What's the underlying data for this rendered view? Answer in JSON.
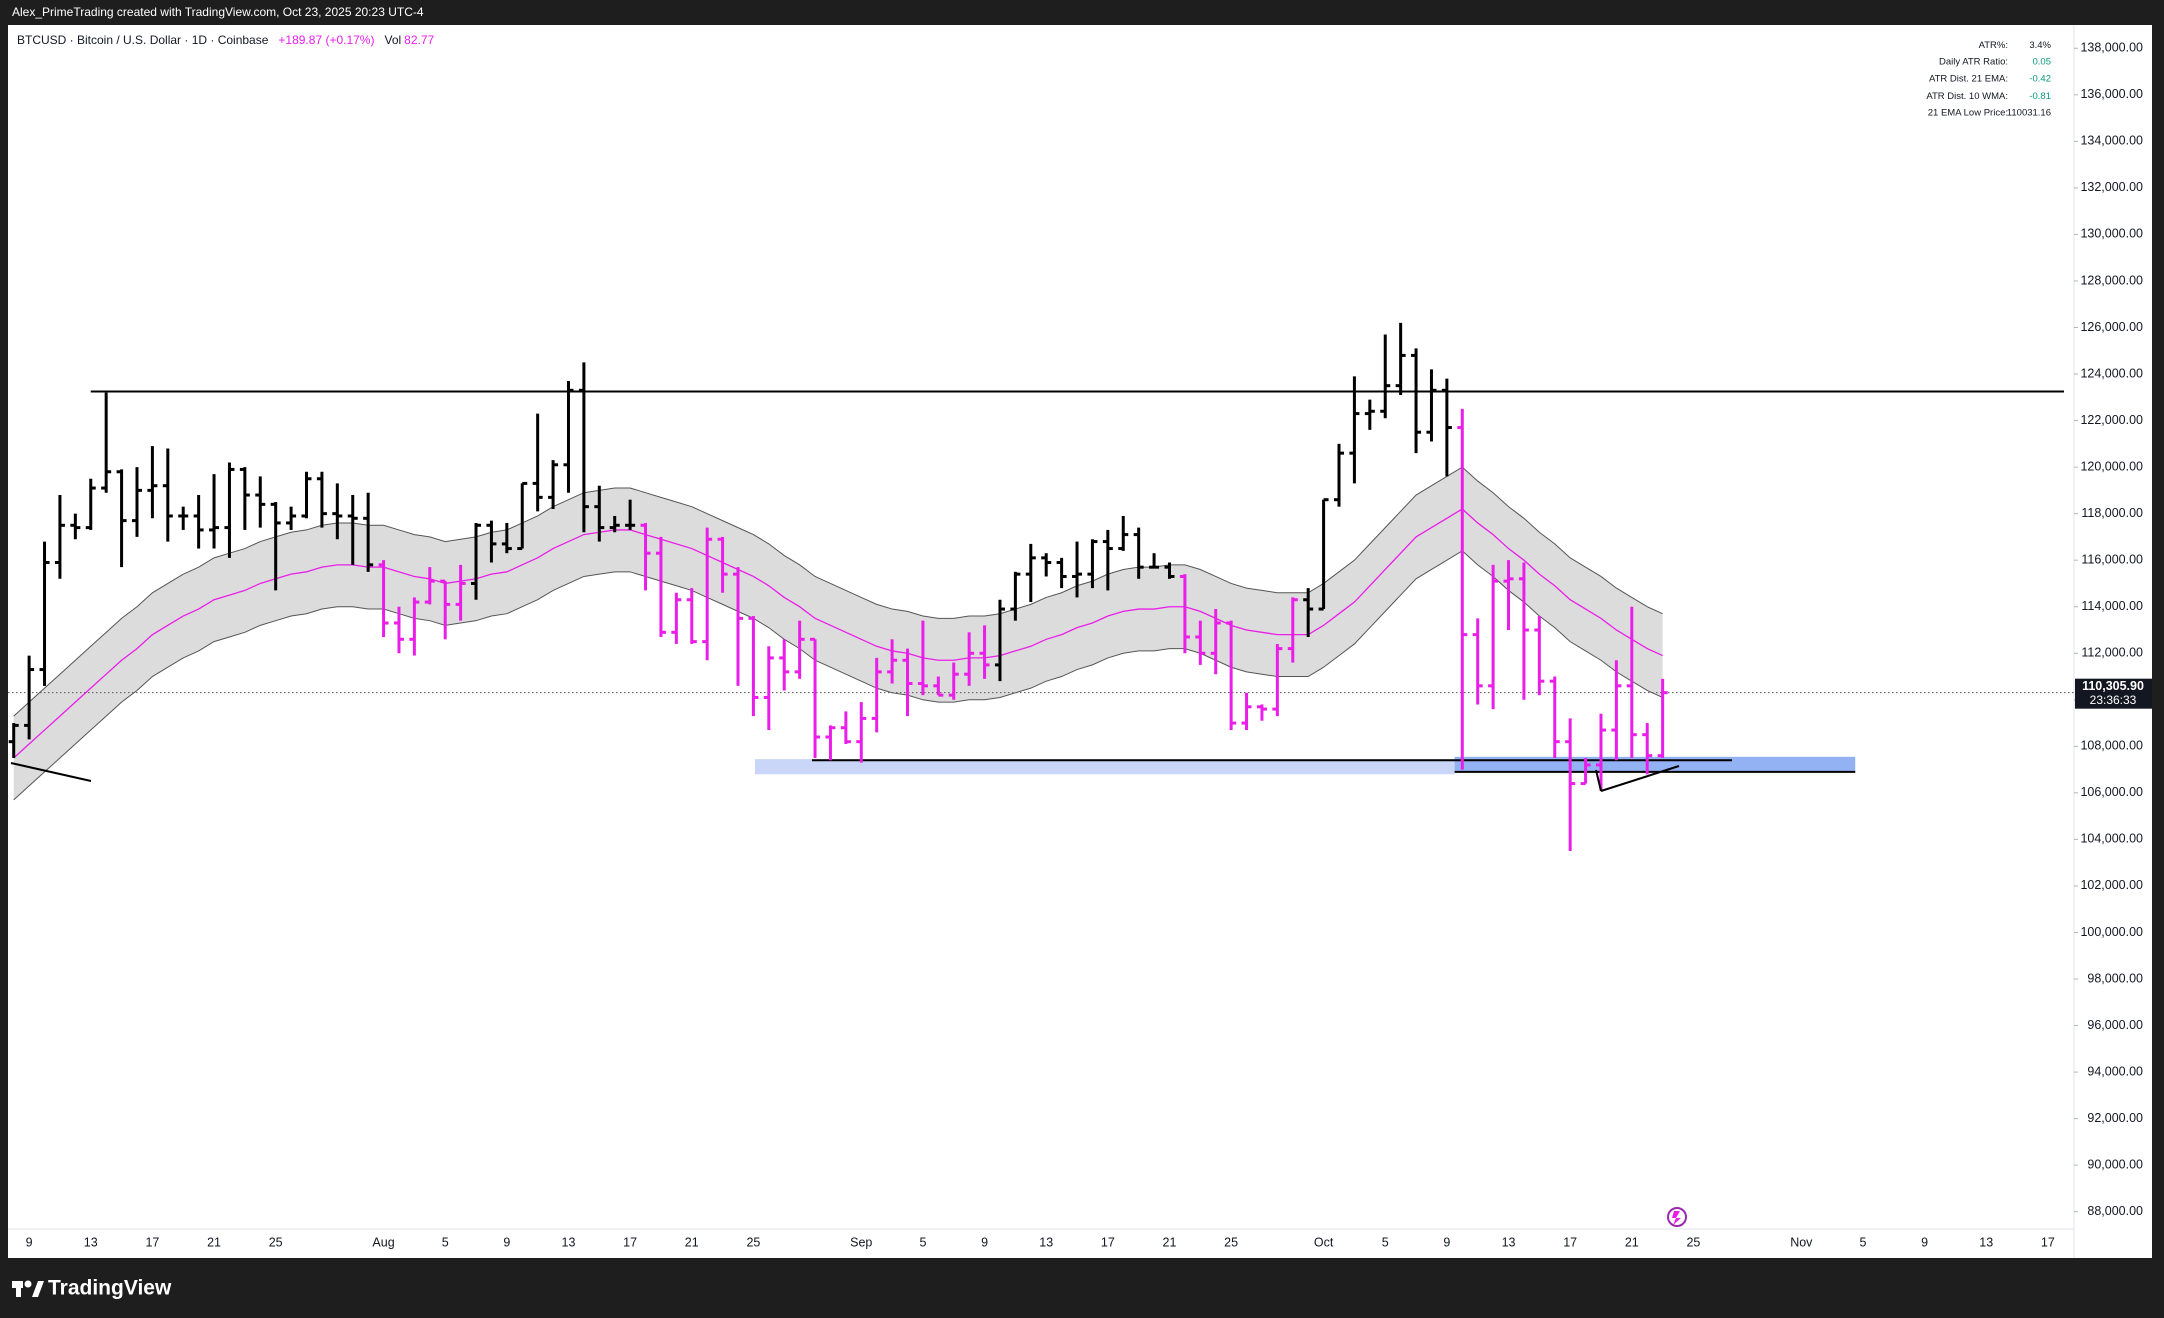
{
  "header": {
    "attribution": "Alex_PrimeTrading created with TradingView.com, Oct 23, 2025 20:23 UTC-4",
    "symbol": "BTCUSD · Bitcoin / U.S. Dollar · 1D · Coinbase",
    "change": "+189.87 (+0.17%)",
    "volume_label": "Vol",
    "volume": "82.77"
  },
  "indicator_table": [
    [
      "ATR%:",
      "3.4%"
    ],
    [
      "Daily ATR Ratio:",
      "0.05"
    ],
    [
      "ATR Dist. 21 EMA:",
      "-0.42"
    ],
    [
      "ATR Dist. 10 WMA:",
      "-0.81"
    ],
    [
      "21 EMA Low Price:",
      "110031.16"
    ]
  ],
  "footer": {
    "brand": "TradingView"
  },
  "chart_data": {
    "type": "ohlc",
    "categories": [
      null,
      "9",
      null,
      null,
      null,
      "13",
      null,
      null,
      null,
      "17",
      null,
      null,
      null,
      "21",
      null,
      null,
      null,
      "25",
      null,
      null,
      null,
      null,
      null,
      null,
      "Aug",
      null,
      null,
      null,
      "5",
      null,
      null,
      null,
      "9",
      null,
      null,
      null,
      "13",
      null,
      null,
      null,
      "17",
      null,
      null,
      null,
      "21",
      null,
      null,
      null,
      "25",
      null,
      null,
      null,
      null,
      null,
      null,
      "Sep",
      null,
      null,
      null,
      "5",
      null,
      null,
      null,
      "9",
      null,
      null,
      null,
      "13",
      null,
      null,
      null,
      "17",
      null,
      null,
      null,
      "21",
      null,
      null,
      null,
      "25",
      null,
      null,
      null,
      null,
      null,
      "Oct",
      null,
      null,
      null,
      "5",
      null,
      null,
      null,
      "9",
      null,
      null,
      null,
      "13",
      null,
      null,
      null,
      "17",
      null,
      null,
      null,
      "21",
      null,
      null,
      null,
      "25",
      null,
      null,
      null,
      null,
      null,
      null,
      "Nov",
      null,
      null,
      null,
      "5",
      null,
      null,
      null,
      "9",
      null,
      null,
      null,
      "13",
      null,
      null,
      null,
      "17",
      null
    ],
    "open": [
      108200,
      108900,
      111300,
      115900,
      117500,
      117400,
      119100,
      119800,
      117700,
      119000,
      119200,
      117900,
      117900,
      117300,
      117400,
      119900,
      118800,
      118400,
      117600,
      117900,
      119500,
      118000,
      117900,
      117800,
      115800,
      113300,
      112600,
      114200,
      115100,
      114100,
      115000,
      117500,
      116700,
      116500,
      119300,
      118700,
      120100,
      123300,
      118300,
      117400,
      117500,
      117500,
      116300,
      112900,
      114300,
      112500,
      116900,
      115400,
      113500,
      110100,
      111800,
      111200,
      112600,
      108400,
      108800,
      108200,
      109200,
      111200,
      111700,
      110700,
      110600,
      110200,
      111100,
      112000,
      111500,
      113900,
      115400,
      116100,
      115900,
      115300,
      115400,
      116800,
      116500,
      117100,
      115700,
      115700,
      115300,
      112700,
      112000,
      113300,
      109000,
      109700,
      109600,
      112200,
      114300,
      113900,
      118600,
      120600,
      122300,
      122400,
      123500,
      124800,
      121500,
      123300,
      121700,
      112800,
      110600,
      115100,
      115200,
      113000,
      110800,
      108200,
      106400,
      107200,
      108700,
      110600,
      108500,
      107600,
      null,
      null,
      null,
      null,
      null,
      null,
      null,
      null,
      null,
      null,
      null,
      null,
      null,
      null,
      null,
      null,
      null,
      null,
      null,
      null,
      null,
      null,
      null,
      null,
      null,
      null
    ],
    "high": [
      109000,
      111900,
      116800,
      118800,
      118000,
      119500,
      123200,
      119900,
      120000,
      120900,
      120800,
      118300,
      118800,
      119700,
      120200,
      120000,
      119600,
      118500,
      118300,
      119800,
      119800,
      119300,
      118800,
      118900,
      116000,
      114000,
      114400,
      115700,
      115100,
      115800,
      117600,
      117700,
      117600,
      119300,
      122300,
      120300,
      123700,
      124500,
      119200,
      117900,
      118600,
      117600,
      117000,
      114600,
      114800,
      117400,
      117000,
      115700,
      113600,
      112300,
      112600,
      113400,
      112600,
      108900,
      109500,
      109900,
      111800,
      112600,
      112200,
      113400,
      111000,
      111600,
      112900,
      113200,
      114300,
      115500,
      116700,
      116300,
      116100,
      116800,
      116900,
      117300,
      117900,
      117400,
      116300,
      115900,
      115400,
      113400,
      113900,
      113400,
      110300,
      109800,
      112400,
      114400,
      114800,
      118600,
      121000,
      123900,
      122900,
      125700,
      126200,
      125100,
      124200,
      123800,
      122500,
      113500,
      115800,
      116000,
      115900,
      113600,
      111000,
      109200,
      107500,
      109400,
      111700,
      114000,
      109000,
      110900,
      null,
      null,
      null,
      null,
      null,
      null,
      null,
      null,
      null,
      null,
      null,
      null,
      null,
      null,
      null,
      null,
      null,
      null,
      null,
      null,
      null,
      null,
      null,
      null,
      null,
      null
    ],
    "low": [
      107500,
      108300,
      110600,
      115200,
      116900,
      117300,
      118900,
      115700,
      117000,
      117800,
      116800,
      117300,
      116500,
      116500,
      116100,
      117300,
      117400,
      114700,
      117300,
      117800,
      117400,
      116900,
      115800,
      115500,
      112700,
      112000,
      111900,
      114100,
      112600,
      113400,
      114300,
      115900,
      116300,
      116500,
      118100,
      118200,
      118900,
      117200,
      116800,
      117200,
      117300,
      114700,
      112700,
      112400,
      112400,
      111700,
      114600,
      110600,
      109300,
      108700,
      110400,
      110900,
      107500,
      107400,
      108100,
      107300,
      108600,
      110700,
      109300,
      110200,
      110200,
      110000,
      110600,
      110900,
      110800,
      113400,
      114200,
      115300,
      114800,
      114400,
      114800,
      114700,
      116400,
      115200,
      115700,
      115200,
      112000,
      111500,
      111100,
      108700,
      108700,
      109100,
      109300,
      111600,
      112700,
      113900,
      118300,
      119300,
      121600,
      122100,
      123100,
      120600,
      121100,
      119600,
      107000,
      109800,
      109600,
      113000,
      110000,
      110200,
      107500,
      103500,
      106400,
      106100,
      107400,
      107500,
      106800,
      107500,
      null,
      null,
      null,
      null,
      null,
      null,
      null,
      null,
      null,
      null,
      null,
      null,
      null,
      null,
      null,
      null,
      null,
      null,
      null,
      null,
      null,
      null,
      null,
      null,
      null,
      null
    ],
    "close": [
      108900,
      111300,
      115900,
      117500,
      117400,
      119100,
      119800,
      117700,
      119000,
      119200,
      117900,
      117900,
      117300,
      117400,
      119900,
      118800,
      118400,
      117600,
      117900,
      119500,
      118000,
      117900,
      117800,
      115800,
      113300,
      112600,
      114200,
      115100,
      114100,
      115000,
      117500,
      116700,
      116500,
      119300,
      118700,
      120100,
      123300,
      118300,
      117400,
      117500,
      117500,
      116300,
      112900,
      114300,
      112500,
      116900,
      115400,
      113500,
      110100,
      111800,
      111200,
      112600,
      108400,
      108800,
      108200,
      109200,
      111200,
      111700,
      110700,
      110600,
      110200,
      111100,
      112000,
      111500,
      113900,
      115400,
      116100,
      115900,
      115300,
      115400,
      116800,
      116500,
      117100,
      115700,
      115700,
      115300,
      112700,
      112000,
      113300,
      109000,
      109700,
      109600,
      112200,
      114300,
      113900,
      118600,
      120600,
      122300,
      122400,
      123500,
      124800,
      121500,
      123300,
      121700,
      112800,
      110600,
      115100,
      115200,
      113000,
      110800,
      108200,
      106400,
      107200,
      108700,
      110600,
      108500,
      107600,
      110305.9,
      null,
      null,
      null,
      null,
      null,
      null,
      null,
      null,
      null,
      null,
      null,
      null,
      null,
      null,
      null,
      null,
      null,
      null,
      null,
      null,
      null,
      null,
      null,
      null,
      null,
      null
    ],
    "bar_colors": [
      "#000000",
      "#000000",
      "#000000",
      "#000000",
      "#000000",
      "#000000",
      "#000000",
      "#000000",
      "#000000",
      "#000000",
      "#000000",
      "#000000",
      "#000000",
      "#000000",
      "#000000",
      "#000000",
      "#000000",
      "#000000",
      "#000000",
      "#000000",
      "#000000",
      "#000000",
      "#000000",
      "#000000",
      "#e91ee9",
      "#e91ee9",
      "#e91ee9",
      "#e91ee9",
      "#e91ee9",
      "#e91ee9",
      "#000000",
      "#000000",
      "#000000",
      "#000000",
      "#000000",
      "#000000",
      "#000000",
      "#000000",
      "#000000",
      "#000000",
      "#000000",
      "#e91ee9",
      "#e91ee9",
      "#e91ee9",
      "#e91ee9",
      "#e91ee9",
      "#e91ee9",
      "#e91ee9",
      "#e91ee9",
      "#e91ee9",
      "#e91ee9",
      "#e91ee9",
      "#e91ee9",
      "#e91ee9",
      "#e91ee9",
      "#e91ee9",
      "#e91ee9",
      "#e91ee9",
      "#e91ee9",
      "#e91ee9",
      "#e91ee9",
      "#e91ee9",
      "#e91ee9",
      "#e91ee9",
      "#000000",
      "#000000",
      "#000000",
      "#000000",
      "#000000",
      "#000000",
      "#000000",
      "#000000",
      "#000000",
      "#000000",
      "#000000",
      "#000000",
      "#e91ee9",
      "#e91ee9",
      "#e91ee9",
      "#e91ee9",
      "#e91ee9",
      "#e91ee9",
      "#e91ee9",
      "#e91ee9",
      "#000000",
      "#000000",
      "#000000",
      "#000000",
      "#000000",
      "#000000",
      "#000000",
      "#000000",
      "#000000",
      "#000000",
      "#e91ee9",
      "#e91ee9",
      "#e91ee9",
      "#e91ee9",
      "#e91ee9",
      "#e91ee9",
      "#e91ee9",
      "#e91ee9",
      "#e91ee9",
      "#e91ee9",
      "#e91ee9",
      "#e91ee9",
      "#e91ee9",
      "#e91ee9",
      null,
      null,
      null,
      null,
      null,
      null,
      null,
      null,
      null,
      null,
      null,
      null,
      null,
      null,
      null,
      null,
      null,
      null,
      null,
      null,
      null,
      null,
      null,
      null,
      null,
      null
    ],
    "ema": [
      107500,
      108100,
      108700,
      109300,
      109900,
      110500,
      111100,
      111700,
      112200,
      112800,
      113200,
      113600,
      113900,
      114300,
      114500,
      114700,
      115000,
      115200,
      115400,
      115500,
      115700,
      115800,
      115800,
      115700,
      115700,
      115500,
      115300,
      115200,
      115000,
      115100,
      115200,
      115400,
      115500,
      115800,
      116100,
      116500,
      116800,
      117100,
      117200,
      117300,
      117300,
      117100,
      116900,
      116700,
      116500,
      116200,
      115900,
      115600,
      115300,
      114900,
      114400,
      114000,
      113500,
      113200,
      112900,
      112600,
      112300,
      112100,
      112000,
      111800,
      111700,
      111700,
      111800,
      111800,
      111900,
      112100,
      112300,
      112600,
      112800,
      113100,
      113300,
      113600,
      113800,
      113900,
      113900,
      114000,
      114000,
      113800,
      113500,
      113200,
      113000,
      112900,
      112800,
      112800,
      112800,
      113200,
      113700,
      114200,
      114900,
      115600,
      116300,
      117000,
      117400,
      117800,
      118200,
      117600,
      117100,
      116500,
      116000,
      115400,
      114900,
      114300,
      113900,
      113500,
      113000,
      112600,
      112200,
      111900,
      null,
      null,
      null,
      null,
      null,
      null,
      null,
      null,
      null,
      null,
      null,
      null,
      null,
      null,
      null,
      null,
      null,
      null,
      null,
      null,
      null,
      null,
      null,
      null,
      null,
      null
    ],
    "band_upper": [
      109300,
      109900,
      110500,
      111100,
      111700,
      112300,
      112900,
      113500,
      114000,
      114600,
      115000,
      115400,
      115700,
      116100,
      116300,
      116500,
      116800,
      117000,
      117200,
      117300,
      117500,
      117600,
      117600,
      117500,
      117500,
      117300,
      117100,
      117000,
      116800,
      116900,
      117000,
      117200,
      117300,
      117600,
      117900,
      118300,
      118600,
      118900,
      119000,
      119100,
      119100,
      118900,
      118700,
      118500,
      118300,
      118000,
      117700,
      117400,
      117100,
      116700,
      116200,
      115800,
      115300,
      115000,
      114700,
      114400,
      114100,
      113900,
      113800,
      113600,
      113500,
      113500,
      113600,
      113600,
      113700,
      113900,
      114100,
      114400,
      114600,
      114900,
      115100,
      115400,
      115600,
      115700,
      115700,
      115800,
      115800,
      115600,
      115300,
      115000,
      114800,
      114700,
      114600,
      114600,
      114600,
      115000,
      115500,
      116000,
      116700,
      117400,
      118100,
      118800,
      119200,
      119600,
      120000,
      119400,
      118900,
      118300,
      117800,
      117200,
      116700,
      116100,
      115700,
      115300,
      114800,
      114400,
      114000,
      113700,
      null,
      null,
      null,
      null,
      null,
      null,
      null,
      null,
      null,
      null,
      null,
      null,
      null,
      null,
      null,
      null,
      null,
      null,
      null,
      null,
      null,
      null,
      null,
      null,
      null,
      null
    ],
    "band_lower": [
      105700,
      106300,
      106900,
      107500,
      108100,
      108700,
      109300,
      109900,
      110400,
      111000,
      111400,
      111800,
      112100,
      112500,
      112700,
      112900,
      113200,
      113400,
      113600,
      113700,
      113900,
      114000,
      114000,
      113900,
      113900,
      113700,
      113500,
      113400,
      113200,
      113300,
      113400,
      113600,
      113700,
      114000,
      114300,
      114700,
      115000,
      115300,
      115400,
      115500,
      115500,
      115300,
      115100,
      114900,
      114700,
      114400,
      114100,
      113800,
      113500,
      113100,
      112600,
      112200,
      111700,
      111400,
      111100,
      110800,
      110500,
      110300,
      110200,
      110000,
      109900,
      109900,
      110000,
      110000,
      110100,
      110300,
      110500,
      110800,
      111000,
      111300,
      111500,
      111800,
      112000,
      112100,
      112100,
      112200,
      112200,
      112000,
      111700,
      111400,
      111200,
      111100,
      111000,
      111000,
      111000,
      111400,
      111900,
      112400,
      113100,
      113800,
      114500,
      115200,
      115600,
      116000,
      116400,
      115800,
      115300,
      114700,
      114200,
      113600,
      113100,
      112500,
      112100,
      111700,
      111200,
      110800,
      110400,
      110100,
      null,
      null,
      null,
      null,
      null,
      null,
      null,
      null,
      null,
      null,
      null,
      null,
      null,
      null,
      null,
      null,
      null,
      null,
      null,
      null,
      null,
      null,
      null,
      null,
      null,
      null
    ],
    "ema_color": "#e91ee9",
    "band_color": "#d6d6d6",
    "resistance": 123250,
    "support": 107400,
    "zones": [
      {
        "low": 106800,
        "high": 107450,
        "color": "#c9d6f7"
      },
      {
        "low": 106900,
        "high": 107550,
        "color": "#93b2f3"
      }
    ],
    "last_price": {
      "value": 110305.9,
      "label": "110,305.90"
    },
    "countdown": "23:36:33",
    "ylim": [
      87300,
      139000
    ],
    "yticks": [
      {
        "value": 88000,
        "label": "88,000.00"
      },
      {
        "value": 90000,
        "label": "90,000.00"
      },
      {
        "value": 92000,
        "label": "92,000.00"
      },
      {
        "value": 94000,
        "label": "94,000.00"
      },
      {
        "value": 96000,
        "label": "96,000.00"
      },
      {
        "value": 98000,
        "label": "98,000.00"
      },
      {
        "value": 100000,
        "label": "100,000.00"
      },
      {
        "value": 102000,
        "label": "102,000.00"
      },
      {
        "value": 104000,
        "label": "104,000.00"
      },
      {
        "value": 106000,
        "label": "106,000.00"
      },
      {
        "value": 108000,
        "label": "108,000.00"
      },
      {
        "value": 110000,
        "label": "110,000.00"
      },
      {
        "value": 112000,
        "label": "112,000.00"
      },
      {
        "value": 114000,
        "label": "114,000.00"
      },
      {
        "value": 116000,
        "label": "116,000.00"
      },
      {
        "value": 118000,
        "label": "118,000.00"
      },
      {
        "value": 120000,
        "label": "120,000.00"
      },
      {
        "value": 122000,
        "label": "122,000.00"
      },
      {
        "value": 124000,
        "label": "124,000.00"
      },
      {
        "value": 126000,
        "label": "126,000.00"
      },
      {
        "value": 128000,
        "label": "128,000.00"
      },
      {
        "value": 130000,
        "label": "130,000.00"
      },
      {
        "value": 132000,
        "label": "132,000.00"
      },
      {
        "value": 134000,
        "label": "134,000.00"
      },
      {
        "value": 136000,
        "label": "136,000.00"
      },
      {
        "value": 138000,
        "label": "138,000.00"
      }
    ],
    "grid": false
  }
}
